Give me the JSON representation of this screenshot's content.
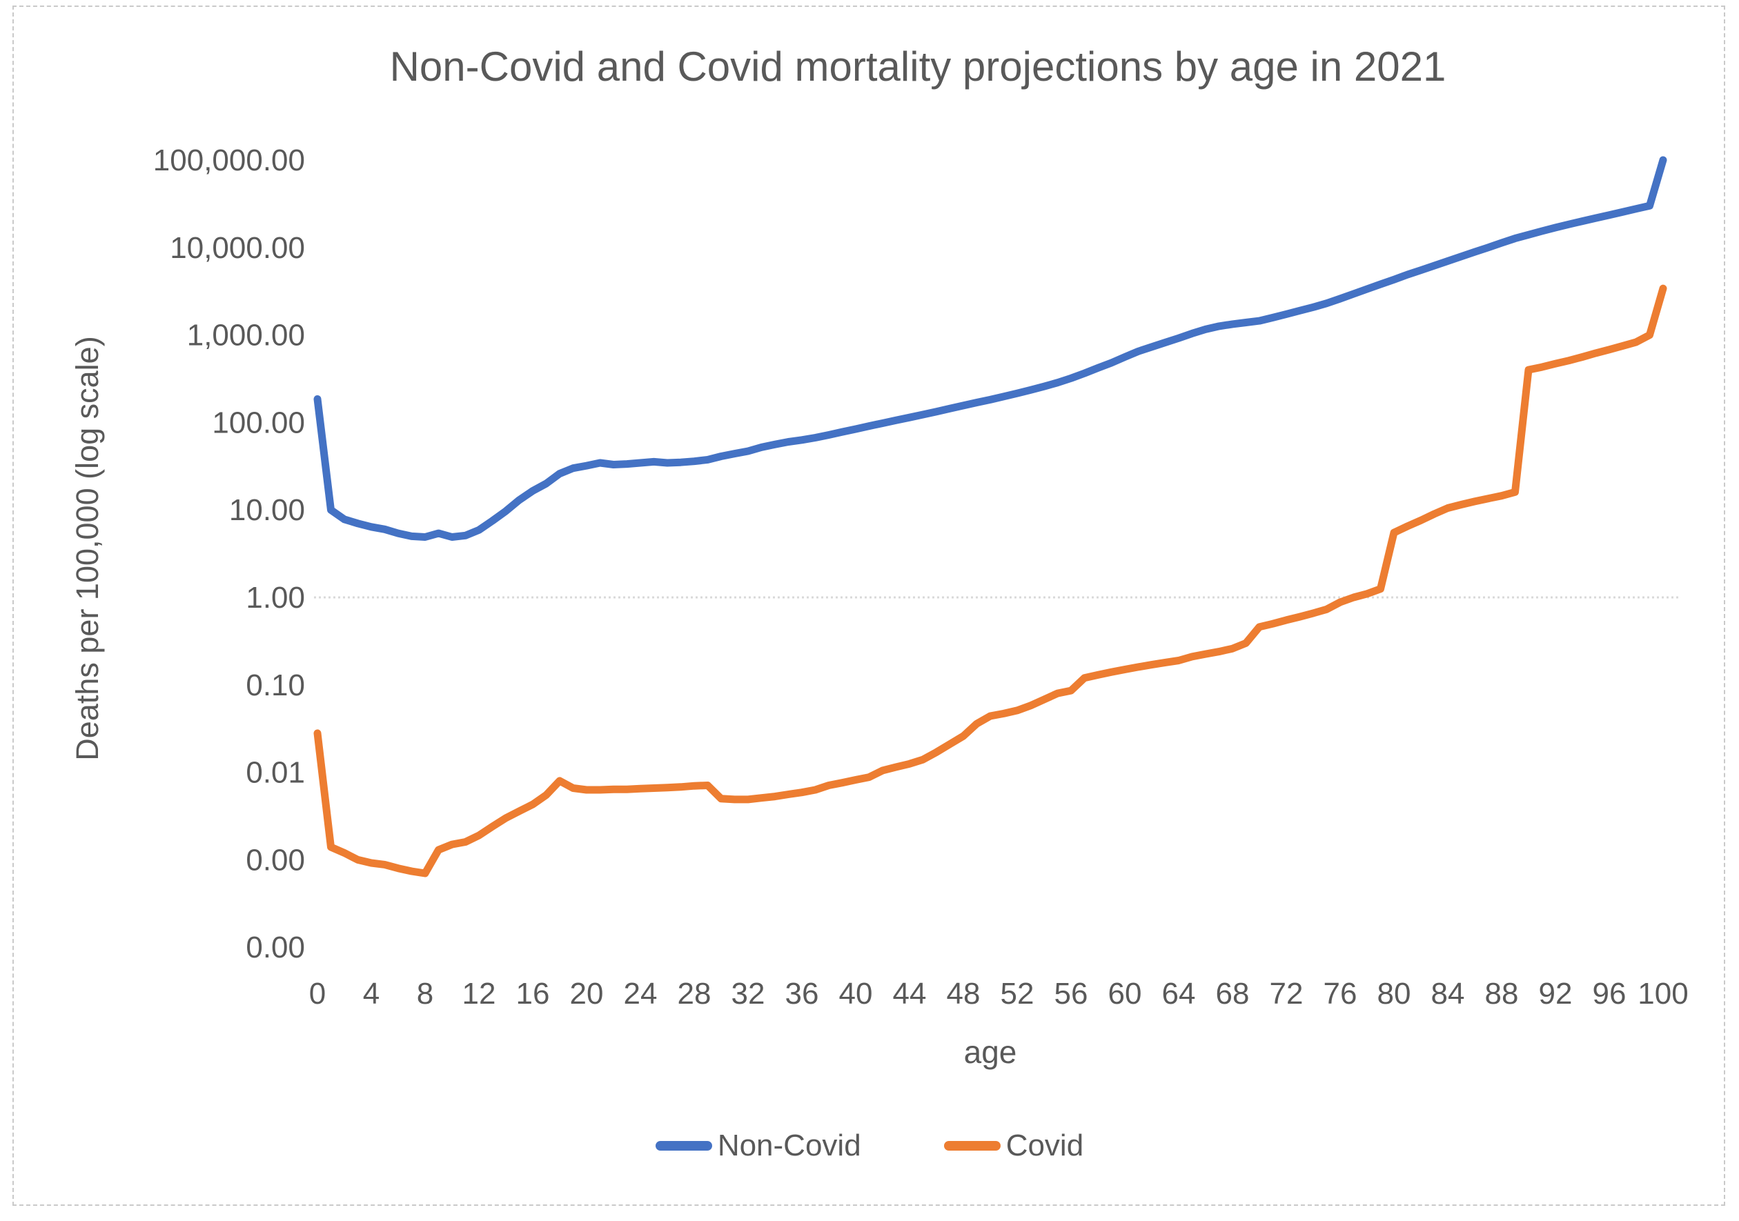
{
  "chart": {
    "title": "Non-Covid and Covid mortality projections by age in 2021"
  },
  "y_axis": {
    "title": "Deaths per 100,000 (log scale)",
    "ticks": [
      {
        "label": "100,000.00",
        "value": 100000
      },
      {
        "label": "10,000.00",
        "value": 10000
      },
      {
        "label": "1,000.00",
        "value": 1000
      },
      {
        "label": "100.00",
        "value": 100
      },
      {
        "label": "10.00",
        "value": 10
      },
      {
        "label": "1.00",
        "value": 1
      },
      {
        "label": "0.10",
        "value": 0.1
      },
      {
        "label": "0.01",
        "value": 0.01
      },
      {
        "label": "0.00",
        "value": 0.001
      },
      {
        "label": "0.00",
        "value": 0.0001
      }
    ]
  },
  "x_axis": {
    "title": "age",
    "tick_ages": [
      0,
      4,
      8,
      12,
      16,
      20,
      24,
      28,
      32,
      36,
      40,
      44,
      48,
      52,
      56,
      60,
      64,
      68,
      72,
      76,
      80,
      84,
      88,
      92,
      96,
      100
    ]
  },
  "legend": {
    "items": [
      {
        "label": "Non-Covid",
        "color": "#4472C4"
      },
      {
        "label": "Covid",
        "color": "#ED7D31"
      }
    ]
  },
  "chart_data": {
    "type": "line",
    "title": "Non-Covid and Covid mortality projections by age in 2021",
    "xlabel": "age",
    "ylabel": "Deaths per 100,000 (log scale)",
    "y_scale": "log",
    "ylim": [
      0.0001,
      100000
    ],
    "xlim": [
      0,
      100
    ],
    "grid": "single horizontal gridline at 1.00",
    "legend_position": "bottom",
    "x": [
      0,
      1,
      2,
      3,
      4,
      5,
      6,
      7,
      8,
      9,
      10,
      11,
      12,
      13,
      14,
      15,
      16,
      17,
      18,
      19,
      20,
      21,
      22,
      23,
      24,
      25,
      26,
      27,
      28,
      29,
      30,
      31,
      32,
      33,
      34,
      35,
      36,
      37,
      38,
      39,
      40,
      41,
      42,
      43,
      44,
      45,
      46,
      47,
      48,
      49,
      50,
      51,
      52,
      53,
      54,
      55,
      56,
      57,
      58,
      59,
      60,
      61,
      62,
      63,
      64,
      65,
      66,
      67,
      68,
      69,
      70,
      71,
      72,
      73,
      74,
      75,
      76,
      77,
      78,
      79,
      80,
      81,
      82,
      83,
      84,
      85,
      86,
      87,
      88,
      89,
      90,
      91,
      92,
      93,
      94,
      95,
      96,
      97,
      98,
      99,
      100
    ],
    "series": [
      {
        "name": "Non-Covid",
        "color": "#4472C4",
        "values": [
          185,
          10,
          7.8,
          7.0,
          6.4,
          6.0,
          5.4,
          5.0,
          4.9,
          5.4,
          4.9,
          5.1,
          5.9,
          7.5,
          9.7,
          13,
          16.5,
          20,
          26,
          30,
          32,
          34.5,
          33,
          33.5,
          34.5,
          35.5,
          34.5,
          35,
          36,
          37.5,
          41,
          44,
          47,
          52,
          56,
          60,
          63,
          67,
          72,
          78,
          84,
          91,
          98,
          106,
          114,
          123,
          133,
          144,
          156,
          169,
          182,
          198,
          215,
          235,
          258,
          285,
          320,
          365,
          420,
          480,
          560,
          650,
          730,
          820,
          920,
          1040,
          1160,
          1260,
          1330,
          1390,
          1450,
          1580,
          1730,
          1900,
          2080,
          2300,
          2600,
          2950,
          3350,
          3800,
          4300,
          4900,
          5500,
          6200,
          7000,
          7900,
          8900,
          10000,
          11300,
          12700,
          14000,
          15400,
          16900,
          18400,
          20000,
          21700,
          23500,
          25500,
          27700,
          30000,
          100000
        ]
      },
      {
        "name": "Covid",
        "color": "#ED7D31",
        "values": [
          0.028,
          0.0014,
          0.0012,
          0.001,
          0.00092,
          0.00088,
          0.0008,
          0.00074,
          0.0007,
          0.0013,
          0.0015,
          0.0016,
          0.0019,
          0.0024,
          0.003,
          0.0036,
          0.0043,
          0.0055,
          0.008,
          0.0066,
          0.0063,
          0.0063,
          0.0064,
          0.0064,
          0.0065,
          0.0066,
          0.0067,
          0.0068,
          0.007,
          0.0071,
          0.005,
          0.0049,
          0.0049,
          0.0051,
          0.0053,
          0.0056,
          0.0059,
          0.0063,
          0.0071,
          0.0076,
          0.0082,
          0.0088,
          0.0105,
          0.0115,
          0.0125,
          0.014,
          0.017,
          0.021,
          0.026,
          0.036,
          0.044,
          0.047,
          0.051,
          0.058,
          0.068,
          0.08,
          0.086,
          0.12,
          0.13,
          0.14,
          0.15,
          0.16,
          0.17,
          0.18,
          0.19,
          0.21,
          0.225,
          0.24,
          0.26,
          0.3,
          0.46,
          0.5,
          0.55,
          0.6,
          0.66,
          0.73,
          0.88,
          1.0,
          1.1,
          1.25,
          5.5,
          6.5,
          7.6,
          9.0,
          10.5,
          11.5,
          12.5,
          13.5,
          14.5,
          16,
          400,
          430,
          470,
          510,
          560,
          620,
          680,
          750,
          830,
          1000,
          3400
        ]
      }
    ]
  }
}
